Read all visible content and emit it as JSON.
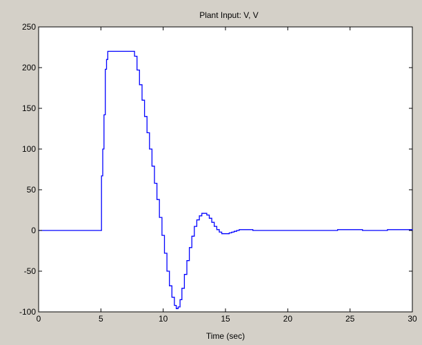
{
  "chart_data": {
    "type": "line",
    "title": "Plant Input:  V, V",
    "xlabel": "Time (sec)",
    "ylabel": "",
    "xlim": [
      0,
      30
    ],
    "ylim": [
      -100,
      250
    ],
    "xticks": [
      0,
      5,
      10,
      15,
      20,
      25,
      30
    ],
    "yticks": [
      -100,
      -50,
      0,
      50,
      100,
      150,
      200,
      250
    ],
    "xtick_labels": [
      "0",
      "5",
      "10",
      "15",
      "20",
      "25",
      "30"
    ],
    "ytick_labels": [
      "-100",
      "-50",
      "0",
      "50",
      "100",
      "150",
      "200",
      "250"
    ],
    "grid": false,
    "step": true,
    "series": [
      {
        "color": "#0000ff",
        "x": [
          0,
          5.0,
          5.05,
          5.15,
          5.25,
          5.35,
          5.45,
          5.55,
          7.5,
          7.7,
          7.9,
          8.1,
          8.3,
          8.5,
          8.7,
          8.9,
          9.1,
          9.3,
          9.5,
          9.7,
          9.9,
          10.1,
          10.3,
          10.5,
          10.7,
          10.9,
          11.05,
          11.2,
          11.35,
          11.5,
          11.7,
          11.9,
          12.1,
          12.3,
          12.5,
          12.7,
          12.9,
          13.1,
          13.3,
          13.5,
          13.7,
          13.9,
          14.1,
          14.3,
          14.5,
          14.7,
          14.9,
          15.1,
          15.3,
          15.5,
          15.7,
          15.9,
          16.1,
          16.3,
          16.5,
          16.7,
          16.9,
          17.2,
          17.6,
          18.0,
          19.0,
          20.0,
          22.0,
          24.0,
          26.0,
          28.0,
          30.0
        ],
        "values": [
          0,
          0,
          67,
          100,
          142,
          198,
          210,
          220,
          220,
          214,
          197,
          179,
          160,
          140,
          120,
          100,
          79,
          58,
          38,
          16,
          -6,
          -28,
          -50,
          -68,
          -82,
          -92,
          -96,
          -94,
          -85,
          -71,
          -54,
          -37,
          -21,
          -7,
          5,
          13,
          18,
          21,
          21,
          19,
          15,
          10,
          5,
          1,
          -2,
          -4,
          -4,
          -4,
          -3,
          -2,
          -1,
          0,
          1,
          1,
          1,
          1,
          1,
          0,
          0,
          0,
          0,
          0,
          0,
          1,
          0,
          1,
          0
        ]
      }
    ]
  }
}
